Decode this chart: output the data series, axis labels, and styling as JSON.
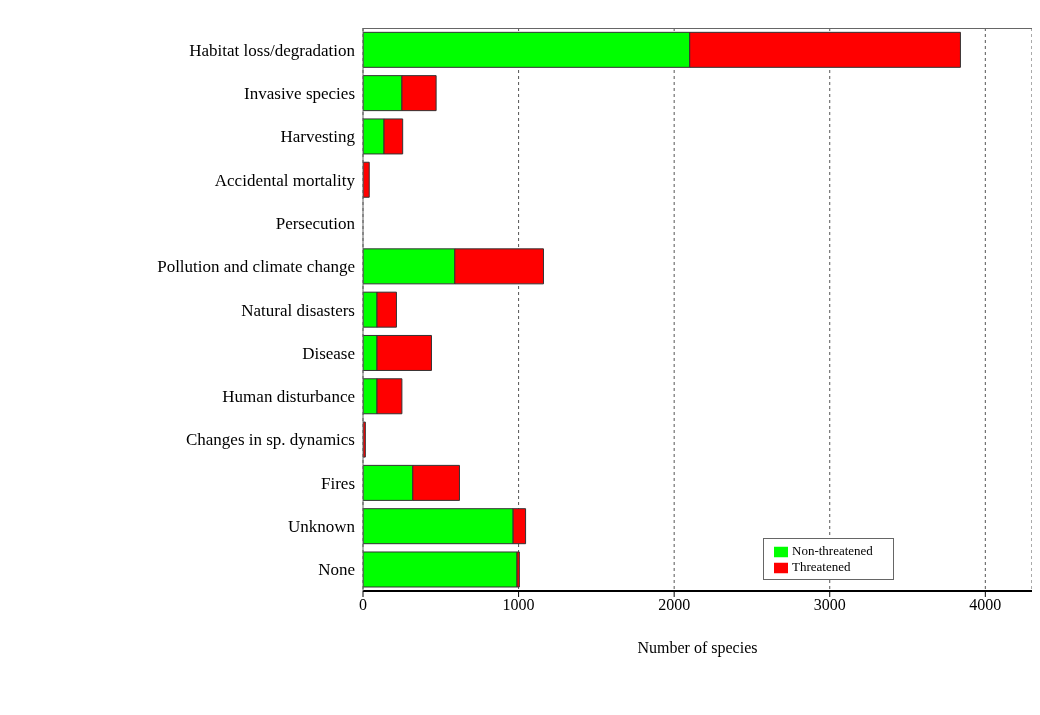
{
  "chart_data": {
    "type": "bar",
    "orientation": "horizontal",
    "stacked": true,
    "xlabel": "Number of species",
    "categories": [
      "Habitat loss/degradation",
      "Invasive species",
      "Harvesting",
      "Accidental mortality",
      "Persecution",
      "Pollution and climate change",
      "Natural disasters",
      "Disease",
      "Human disturbance",
      "Changes in sp. dynamics",
      "Fires",
      "Unknown",
      "None"
    ],
    "series": [
      {
        "name": "Non-threatened",
        "color": "#00ff00",
        "values": [
          2100,
          250,
          135,
          null,
          0,
          590,
          90,
          90,
          90,
          null,
          320,
          965,
          990
        ]
      },
      {
        "name": "Threatened",
        "color": "#ff0000",
        "values": [
          1740,
          220,
          120,
          40,
          0,
          570,
          125,
          350,
          160,
          15,
          300,
          80,
          15
        ]
      }
    ],
    "xlim": [
      0,
      4300
    ],
    "xticks": [
      0,
      1000,
      2000,
      3000,
      4000
    ],
    "grid": "x",
    "legend": "bottom right"
  }
}
